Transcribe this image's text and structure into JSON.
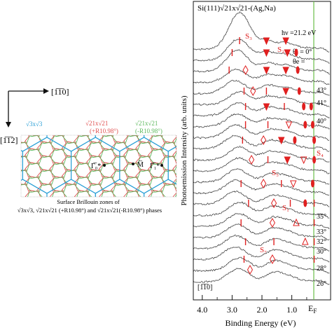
{
  "left_panel": {
    "dir_x": "[1̅1̅0]",
    "dir_y": "[1̅1̅2]",
    "legend_blue": "√3x√3",
    "legend_red_1": "√21x√21",
    "legend_red_2": "(+R10.98°)",
    "legend_green_1": "√21x√21",
    "legend_green_2": "(-R10.98°)",
    "pt_gamma0": "Γ̅₀*",
    "pt_m": "M̅",
    "pt_gamma1": "Γ̅₁*",
    "caption_1": "Surface Brillouin zones of",
    "caption_2": "√3x√3, √21x√21 (+R10.98°) and √21x√21(-R10.98°) phases",
    "colors": {
      "blue": "#2a9fd6",
      "red": "#e05050",
      "green": "#5cb85c"
    }
  },
  "chart_data": {
    "type": "line",
    "title": "Si(111)√21x√21-(Ag,Na)",
    "photon_energy": "hν =21.2 eV",
    "theta_i": "θi = 0°",
    "theta_e": "θe =",
    "xlabel": "Binding Energy (eV)",
    "ylabel": "Photoemission Intensity (arb. units)",
    "x_reversed": true,
    "xlim": [
      4.3,
      -0.3
    ],
    "x_ticks": [
      "4.0",
      "3.0",
      "2.0",
      "1.0"
    ],
    "x_ef": "E",
    "x_ef_sub": "F",
    "direction": "[1̅1̅0]",
    "angles": [
      "43°",
      "41°",
      "40°",
      "35°",
      "33°",
      "32°",
      "30°",
      "28°",
      "26°"
    ],
    "states": [
      "S₃",
      "S₂",
      "S₄",
      "S₅",
      "S₁",
      "S₇",
      "S₆"
    ],
    "series_count": 22,
    "markers": {
      "bar": "|",
      "diamond_open": "◊",
      "triangle_open": "▽",
      "triangle_up_open": "Δ",
      "triangle_filled": "▼",
      "ellipse_filled": "●"
    },
    "colors": {
      "data": "#222222",
      "marker": "#e02020",
      "ef_line": "#6cbf4a"
    }
  }
}
